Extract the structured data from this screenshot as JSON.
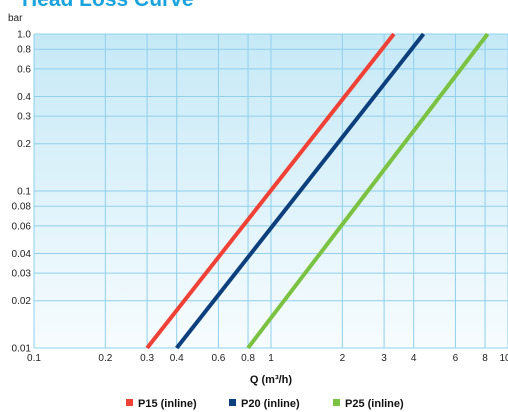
{
  "chart_data": {
    "type": "line",
    "title": "Head Loss Curve",
    "xlabel": "Q (m³/h)",
    "ylabel": "bar",
    "x_scale": "log",
    "y_scale": "log",
    "xlim": [
      0.1,
      10
    ],
    "ylim": [
      0.01,
      1.0
    ],
    "x_ticks": [
      0.1,
      0.2,
      0.3,
      0.4,
      0.6,
      0.8,
      1,
      2,
      3,
      4,
      6,
      8,
      10
    ],
    "x_tick_labels": [
      "0.1",
      "0.2",
      "0.3",
      "0.4",
      "0.6",
      "0.8",
      "1",
      "2",
      "3",
      "4",
      "6",
      "8",
      "10"
    ],
    "y_ticks": [
      0.01,
      0.02,
      0.03,
      0.04,
      0.06,
      0.08,
      0.1,
      0.2,
      0.3,
      0.4,
      0.6,
      0.8,
      1.0
    ],
    "y_tick_labels": [
      "0.01",
      "0.02",
      "0.03",
      "0.04",
      "0.06",
      "0.08",
      "0.1",
      "0.2",
      "0.3",
      "0.4",
      "0.6",
      "0.8",
      "1.0"
    ],
    "grid": true,
    "legend_position": "bottom-center",
    "series": [
      {
        "name": "P15 (inline)",
        "color": "#ef4136",
        "points": [
          [
            0.3,
            0.01
          ],
          [
            3.3,
            1.0
          ]
        ]
      },
      {
        "name": "P20 (inline)",
        "color": "#0d3f7d",
        "points": [
          [
            0.4,
            0.01
          ],
          [
            4.4,
            1.0
          ]
        ]
      },
      {
        "name": "P25 (inline)",
        "color": "#7cc242",
        "points": [
          [
            0.8,
            0.01
          ],
          [
            8.2,
            1.0
          ]
        ]
      }
    ]
  }
}
